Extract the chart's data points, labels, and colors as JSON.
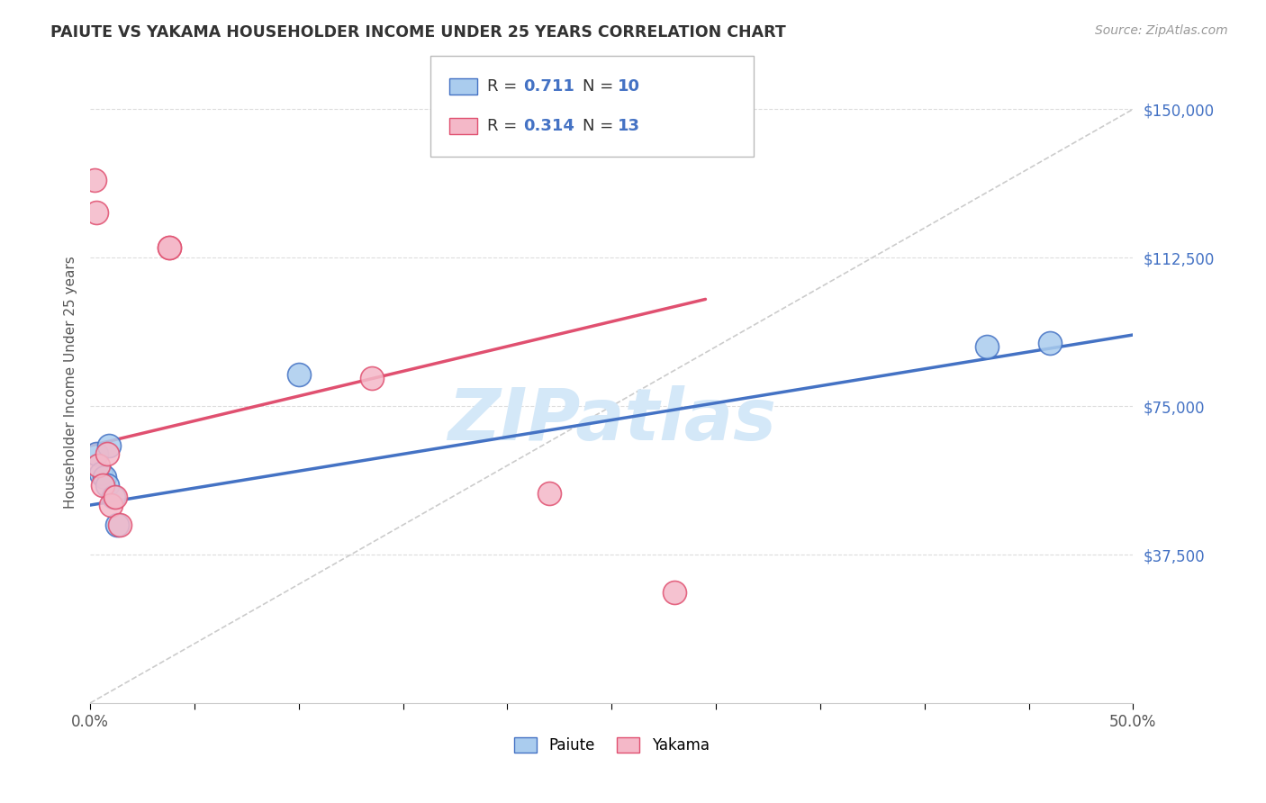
{
  "title": "PAIUTE VS YAKAMA HOUSEHOLDER INCOME UNDER 25 YEARS CORRELATION CHART",
  "source": "Source: ZipAtlas.com",
  "ylabel": "Householder Income Under 25 years",
  "ytick_labels": [
    "$37,500",
    "$75,000",
    "$112,500",
    "$150,000"
  ],
  "ytick_values": [
    37500,
    75000,
    112500,
    150000
  ],
  "ymin": 0,
  "ymax": 162000,
  "xmin": 0.0,
  "xmax": 0.5,
  "paiute_R": "0.711",
  "paiute_N": "10",
  "yakama_R": "0.314",
  "yakama_N": "13",
  "paiute_color": "#aaccee",
  "paiute_edge_color": "#4472c4",
  "yakama_color": "#f4b8c8",
  "yakama_edge_color": "#e05070",
  "paiute_line_color": "#4472c4",
  "yakama_line_color": "#e05070",
  "diagonal_color": "#cccccc",
  "paiute_scatter_x": [
    0.003,
    0.005,
    0.007,
    0.008,
    0.009,
    0.011,
    0.013,
    0.1,
    0.43,
    0.46
  ],
  "paiute_scatter_y": [
    63000,
    58000,
    57000,
    55000,
    65000,
    52000,
    45000,
    83000,
    90000,
    91000
  ],
  "yakama_scatter_x": [
    0.002,
    0.003,
    0.004,
    0.006,
    0.008,
    0.01,
    0.012,
    0.014,
    0.038,
    0.038,
    0.135,
    0.22,
    0.28
  ],
  "yakama_scatter_y": [
    132000,
    124000,
    60000,
    55000,
    63000,
    50000,
    52000,
    45000,
    115000,
    115000,
    82000,
    53000,
    28000
  ],
  "paiute_line_x": [
    0.0,
    0.5
  ],
  "paiute_line_y": [
    50000,
    93000
  ],
  "yakama_line_x": [
    0.0,
    0.295
  ],
  "yakama_line_y": [
    65000,
    102000
  ],
  "diagonal_line_x": [
    0.0,
    0.5
  ],
  "diagonal_line_y": [
    0,
    150000
  ],
  "background_color": "#ffffff",
  "grid_color": "#dddddd",
  "title_color": "#333333",
  "axis_label_color": "#555555",
  "ytick_color": "#4472c4",
  "xtick_color": "#555555",
  "watermark": "ZIPatlas",
  "watermark_color": "#d4e8f8"
}
